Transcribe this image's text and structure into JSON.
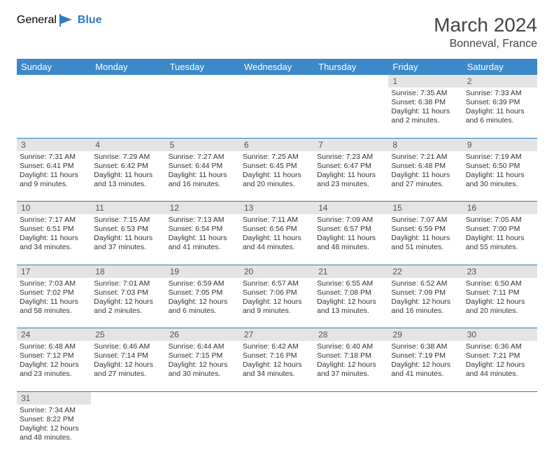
{
  "brand": {
    "part1": "General",
    "part2": "Blue"
  },
  "header": {
    "month": "March 2024",
    "location": "Bonneval, France"
  },
  "weekdays": [
    "Sunday",
    "Monday",
    "Tuesday",
    "Wednesday",
    "Thursday",
    "Friday",
    "Saturday"
  ],
  "colors": {
    "header_bg": "#3b89c9",
    "accent": "#2b7cc4",
    "daynum_bg": "#e4e4e4"
  },
  "weeks": [
    [
      null,
      null,
      null,
      null,
      null,
      {
        "n": "1",
        "sr": "7:35 AM",
        "ss": "6:38 PM",
        "dl": "11 hours and 2 minutes."
      },
      {
        "n": "2",
        "sr": "7:33 AM",
        "ss": "6:39 PM",
        "dl": "11 hours and 6 minutes."
      }
    ],
    [
      {
        "n": "3",
        "sr": "7:31 AM",
        "ss": "6:41 PM",
        "dl": "11 hours and 9 minutes."
      },
      {
        "n": "4",
        "sr": "7:29 AM",
        "ss": "6:42 PM",
        "dl": "11 hours and 13 minutes."
      },
      {
        "n": "5",
        "sr": "7:27 AM",
        "ss": "6:44 PM",
        "dl": "11 hours and 16 minutes."
      },
      {
        "n": "6",
        "sr": "7:25 AM",
        "ss": "6:45 PM",
        "dl": "11 hours and 20 minutes."
      },
      {
        "n": "7",
        "sr": "7:23 AM",
        "ss": "6:47 PM",
        "dl": "11 hours and 23 minutes."
      },
      {
        "n": "8",
        "sr": "7:21 AM",
        "ss": "6:48 PM",
        "dl": "11 hours and 27 minutes."
      },
      {
        "n": "9",
        "sr": "7:19 AM",
        "ss": "6:50 PM",
        "dl": "11 hours and 30 minutes."
      }
    ],
    [
      {
        "n": "10",
        "sr": "7:17 AM",
        "ss": "6:51 PM",
        "dl": "11 hours and 34 minutes."
      },
      {
        "n": "11",
        "sr": "7:15 AM",
        "ss": "6:53 PM",
        "dl": "11 hours and 37 minutes."
      },
      {
        "n": "12",
        "sr": "7:13 AM",
        "ss": "6:54 PM",
        "dl": "11 hours and 41 minutes."
      },
      {
        "n": "13",
        "sr": "7:11 AM",
        "ss": "6:56 PM",
        "dl": "11 hours and 44 minutes."
      },
      {
        "n": "14",
        "sr": "7:09 AM",
        "ss": "6:57 PM",
        "dl": "11 hours and 48 minutes."
      },
      {
        "n": "15",
        "sr": "7:07 AM",
        "ss": "6:59 PM",
        "dl": "11 hours and 51 minutes."
      },
      {
        "n": "16",
        "sr": "7:05 AM",
        "ss": "7:00 PM",
        "dl": "11 hours and 55 minutes."
      }
    ],
    [
      {
        "n": "17",
        "sr": "7:03 AM",
        "ss": "7:02 PM",
        "dl": "11 hours and 58 minutes."
      },
      {
        "n": "18",
        "sr": "7:01 AM",
        "ss": "7:03 PM",
        "dl": "12 hours and 2 minutes."
      },
      {
        "n": "19",
        "sr": "6:59 AM",
        "ss": "7:05 PM",
        "dl": "12 hours and 6 minutes."
      },
      {
        "n": "20",
        "sr": "6:57 AM",
        "ss": "7:06 PM",
        "dl": "12 hours and 9 minutes."
      },
      {
        "n": "21",
        "sr": "6:55 AM",
        "ss": "7:08 PM",
        "dl": "12 hours and 13 minutes."
      },
      {
        "n": "22",
        "sr": "6:52 AM",
        "ss": "7:09 PM",
        "dl": "12 hours and 16 minutes."
      },
      {
        "n": "23",
        "sr": "6:50 AM",
        "ss": "7:11 PM",
        "dl": "12 hours and 20 minutes."
      }
    ],
    [
      {
        "n": "24",
        "sr": "6:48 AM",
        "ss": "7:12 PM",
        "dl": "12 hours and 23 minutes."
      },
      {
        "n": "25",
        "sr": "6:46 AM",
        "ss": "7:14 PM",
        "dl": "12 hours and 27 minutes."
      },
      {
        "n": "26",
        "sr": "6:44 AM",
        "ss": "7:15 PM",
        "dl": "12 hours and 30 minutes."
      },
      {
        "n": "27",
        "sr": "6:42 AM",
        "ss": "7:16 PM",
        "dl": "12 hours and 34 minutes."
      },
      {
        "n": "28",
        "sr": "6:40 AM",
        "ss": "7:18 PM",
        "dl": "12 hours and 37 minutes."
      },
      {
        "n": "29",
        "sr": "6:38 AM",
        "ss": "7:19 PM",
        "dl": "12 hours and 41 minutes."
      },
      {
        "n": "30",
        "sr": "6:36 AM",
        "ss": "7:21 PM",
        "dl": "12 hours and 44 minutes."
      }
    ],
    [
      {
        "n": "31",
        "sr": "7:34 AM",
        "ss": "8:22 PM",
        "dl": "12 hours and 48 minutes."
      },
      null,
      null,
      null,
      null,
      null,
      null
    ]
  ],
  "labels": {
    "sunrise": "Sunrise:",
    "sunset": "Sunset:",
    "daylight": "Daylight:"
  }
}
